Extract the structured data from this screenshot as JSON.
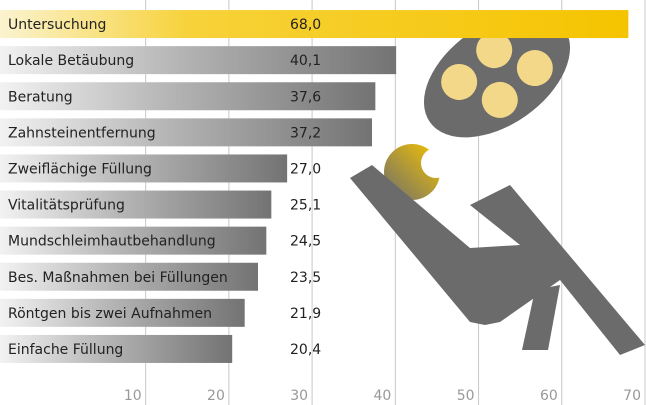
{
  "chart_data": {
    "type": "bar",
    "orientation": "horizontal",
    "categories": [
      "Untersuchung",
      "Lokale Betäubung",
      "Beratung",
      "Zahnsteinentfernung",
      "Zweiflächige Füllung",
      "Vitalitätsprüfung",
      "Mundschleimhautbehandlung",
      "Bes. Maßnahmen bei Füllungen",
      "Röntgen bis zwei Aufnahmen",
      "Einfache Füllung"
    ],
    "values": [
      68.0,
      40.1,
      37.6,
      37.2,
      27.0,
      25.1,
      24.5,
      23.5,
      21.9,
      20.4
    ],
    "value_labels": [
      "68,0",
      "40,1",
      "37,6",
      "37,2",
      "27,0",
      "25,1",
      "24,5",
      "23,5",
      "21,9",
      "20,4"
    ],
    "color": "#7a7a7a",
    "highlight_color": "#f5c400",
    "xlim": [
      -7.5,
      70
    ],
    "xticks": [
      10,
      20,
      30,
      40,
      50,
      60,
      70
    ],
    "grid": true
  }
}
